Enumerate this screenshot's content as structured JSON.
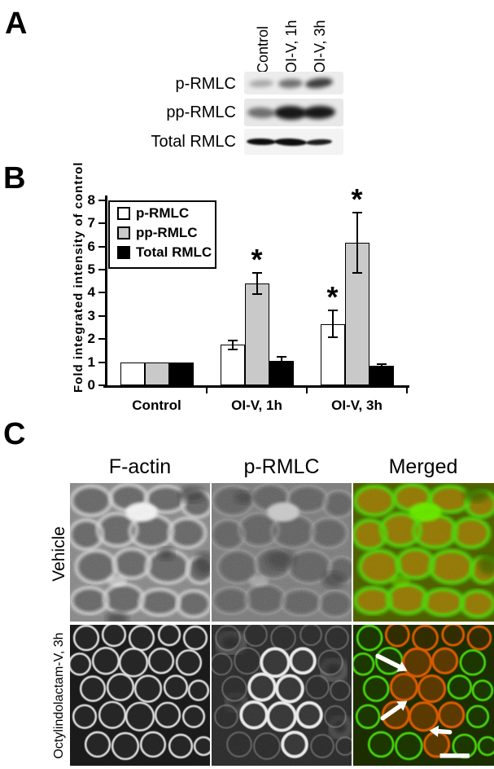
{
  "panels": {
    "a": {
      "label": "A",
      "lanes": [
        "Control",
        "OI-V, 1h",
        "OI-V, 3h"
      ],
      "rows": [
        {
          "label": "p-RMLC",
          "band_intensities": [
            0.3,
            0.55,
            0.78
          ]
        },
        {
          "label": "pp-RMLC",
          "band_intensities": [
            0.55,
            0.95,
            0.95
          ]
        },
        {
          "label": "Total RMLC",
          "band_intensities": [
            1.0,
            1.0,
            0.92
          ]
        }
      ]
    },
    "b": {
      "label": "B"
    },
    "c": {
      "label": "C",
      "column_headers": [
        "F-actin",
        "p-RMLC",
        "Merged"
      ],
      "row_labels": [
        "Vehicle",
        "Octylindolactam-V, 3h"
      ],
      "merged_colors": {
        "f_actin_channel": "#3be114",
        "p_rmlc_channel": "#ff3c00"
      },
      "annotations": {
        "arrow_count": 3,
        "arrow_color": "#ffffff",
        "scale_bar": true
      }
    }
  },
  "chart_data": {
    "type": "bar",
    "title": "",
    "xlabel": "",
    "ylabel": "Fold integrated intensity of control",
    "ylim": [
      0,
      8
    ],
    "yticks": [
      0,
      1,
      2,
      3,
      4,
      5,
      6,
      7,
      8
    ],
    "grid": false,
    "legend_position": "upper-left",
    "significance_marker": "*",
    "categories": [
      "Control",
      "OI-V, 1h",
      "OI-V, 3h"
    ],
    "series": [
      {
        "name": "p-RMLC",
        "color": "#ffffff",
        "values": [
          1.0,
          1.75,
          2.65
        ],
        "errors": [
          0,
          0.2,
          0.58
        ],
        "sig": [
          false,
          false,
          true
        ]
      },
      {
        "name": "pp-RMLC",
        "color": "#c9c9c9",
        "values": [
          1.0,
          4.4,
          6.15
        ],
        "errors": [
          0,
          0.46,
          1.3
        ],
        "sig": [
          false,
          true,
          true
        ]
      },
      {
        "name": "Total RMLC",
        "color": "#000000",
        "values": [
          1.0,
          1.07,
          0.85
        ],
        "errors": [
          0,
          0.15,
          0.08
        ],
        "sig": [
          false,
          false,
          false
        ]
      }
    ]
  }
}
